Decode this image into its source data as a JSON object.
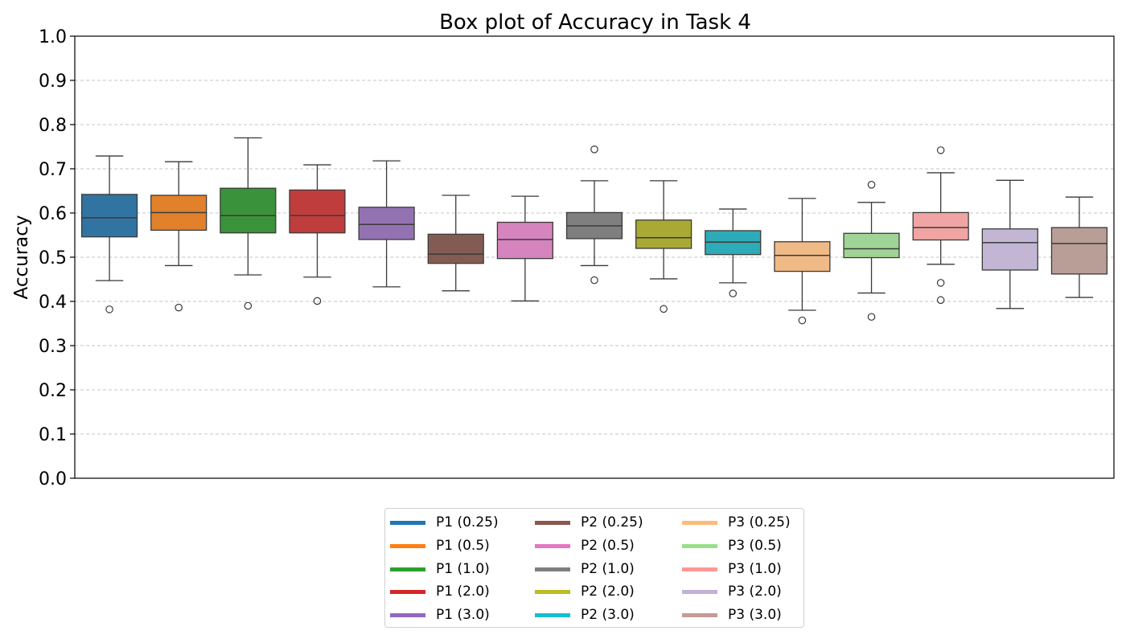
{
  "chart_data": {
    "type": "box",
    "title": "Box plot of Accuracy in Task 4",
    "xlabel": "",
    "ylabel": "Accuracy",
    "ylim": [
      0.0,
      1.0
    ],
    "yticks": [
      "0.0",
      "0.1",
      "0.2",
      "0.3",
      "0.4",
      "0.5",
      "0.6",
      "0.7",
      "0.8",
      "0.9",
      "1.0"
    ],
    "grid": "horizontal dashed",
    "legend_position": "bottom-center",
    "series": [
      {
        "name": "P1 (0.25)",
        "color": "#1f77b4",
        "fill": "#3274a1",
        "q1": 0.546,
        "median": 0.589,
        "q3": 0.642,
        "whisker_low": 0.447,
        "whisker_high": 0.729,
        "outliers": [
          0.382
        ]
      },
      {
        "name": "P1 (0.5)",
        "color": "#ff7f0e",
        "fill": "#e1812c",
        "q1": 0.561,
        "median": 0.601,
        "q3": 0.64,
        "whisker_low": 0.481,
        "whisker_high": 0.716,
        "outliers": [
          0.386
        ]
      },
      {
        "name": "P1 (1.0)",
        "color": "#2ca02c",
        "fill": "#3a923a",
        "q1": 0.555,
        "median": 0.594,
        "q3": 0.656,
        "whisker_low": 0.46,
        "whisker_high": 0.77,
        "outliers": [
          0.39
        ]
      },
      {
        "name": "P1 (2.0)",
        "color": "#d62728",
        "fill": "#c03d3e",
        "q1": 0.555,
        "median": 0.594,
        "q3": 0.652,
        "whisker_low": 0.455,
        "whisker_high": 0.709,
        "outliers": [
          0.401
        ]
      },
      {
        "name": "P1 (3.0)",
        "color": "#9467bd",
        "fill": "#9372b2",
        "q1": 0.54,
        "median": 0.574,
        "q3": 0.613,
        "whisker_low": 0.433,
        "whisker_high": 0.718,
        "outliers": []
      },
      {
        "name": "P2 (0.25)",
        "color": "#8c564b",
        "fill": "#845b53",
        "q1": 0.486,
        "median": 0.507,
        "q3": 0.552,
        "whisker_low": 0.424,
        "whisker_high": 0.64,
        "outliers": []
      },
      {
        "name": "P2 (0.5)",
        "color": "#e377c2",
        "fill": "#d684bd",
        "q1": 0.497,
        "median": 0.54,
        "q3": 0.579,
        "whisker_low": 0.401,
        "whisker_high": 0.638,
        "outliers": []
      },
      {
        "name": "P2 (1.0)",
        "color": "#7f7f7f",
        "fill": "#7f7f7f",
        "q1": 0.542,
        "median": 0.571,
        "q3": 0.601,
        "whisker_low": 0.481,
        "whisker_high": 0.673,
        "outliers": [
          0.448,
          0.744
        ]
      },
      {
        "name": "P2 (2.0)",
        "color": "#bcbd22",
        "fill": "#a9aa35",
        "q1": 0.52,
        "median": 0.544,
        "q3": 0.584,
        "whisker_low": 0.451,
        "whisker_high": 0.673,
        "outliers": [
          0.383
        ]
      },
      {
        "name": "P2 (3.0)",
        "color": "#17becf",
        "fill": "#2eabb8",
        "q1": 0.506,
        "median": 0.534,
        "q3": 0.56,
        "whisker_low": 0.442,
        "whisker_high": 0.609,
        "outliers": [
          0.418
        ]
      },
      {
        "name": "P3 (0.25)",
        "color": "#ffbb78",
        "fill": "#f0ba86",
        "q1": 0.468,
        "median": 0.504,
        "q3": 0.535,
        "whisker_low": 0.38,
        "whisker_high": 0.633,
        "outliers": [
          0.357
        ]
      },
      {
        "name": "P3 (0.5)",
        "color": "#98df8a",
        "fill": "#a0d496",
        "q1": 0.499,
        "median": 0.519,
        "q3": 0.554,
        "whisker_low": 0.419,
        "whisker_high": 0.624,
        "outliers": [
          0.365,
          0.664
        ]
      },
      {
        "name": "P3 (1.0)",
        "color": "#ff9896",
        "fill": "#f0a5a4",
        "q1": 0.539,
        "median": 0.567,
        "q3": 0.601,
        "whisker_low": 0.484,
        "whisker_high": 0.691,
        "outliers": [
          0.403,
          0.442,
          0.742
        ]
      },
      {
        "name": "P3 (2.0)",
        "color": "#c5b0d5",
        "fill": "#c2b6d4",
        "q1": 0.471,
        "median": 0.533,
        "q3": 0.564,
        "whisker_low": 0.384,
        "whisker_high": 0.674,
        "outliers": []
      },
      {
        "name": "P3 (3.0)",
        "color": "#c49c94",
        "fill": "#b99e97",
        "q1": 0.462,
        "median": 0.531,
        "q3": 0.567,
        "whisker_low": 0.409,
        "whisker_high": 0.636,
        "outliers": []
      }
    ]
  }
}
